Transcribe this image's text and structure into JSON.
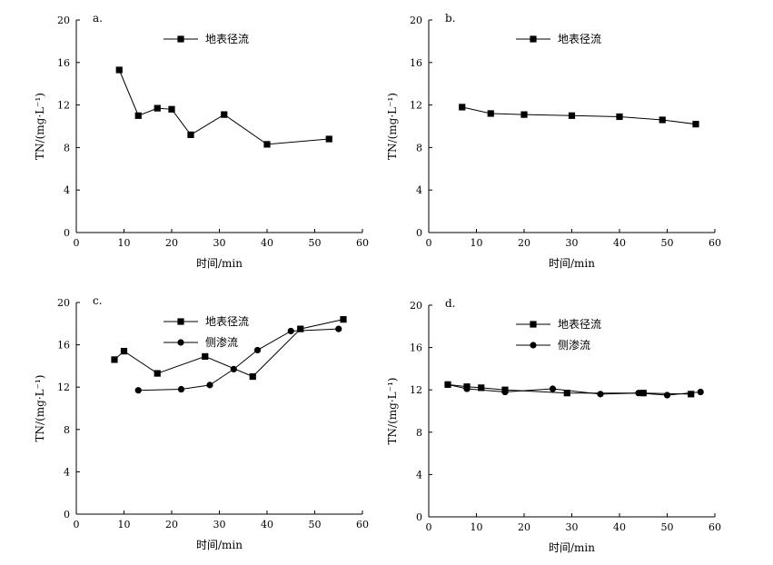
{
  "chart_data": [
    {
      "type": "line",
      "panel_label": "a.",
      "xlabel": "时间/min",
      "ylabel": "TN/(mg·L⁻¹)",
      "xlim": [
        0,
        60
      ],
      "ylim": [
        0,
        20
      ],
      "xticks": [
        "0",
        "10",
        "20",
        "30",
        "40",
        "50",
        "60"
      ],
      "yticks": [
        "0",
        "4",
        "8",
        "12",
        "16",
        "20"
      ],
      "grid": false,
      "legend_position": "top-center",
      "series": [
        {
          "name": "地表径流",
          "marker": "square",
          "x": [
            9,
            13,
            17,
            20,
            24,
            31,
            40,
            53
          ],
          "y": [
            15.3,
            11.0,
            11.7,
            11.6,
            9.2,
            11.1,
            8.3,
            8.8
          ]
        }
      ]
    },
    {
      "type": "line",
      "panel_label": "b.",
      "xlabel": "时间/min",
      "ylabel": "TN/(mg·L⁻¹)",
      "xlim": [
        0,
        60
      ],
      "ylim": [
        0,
        20
      ],
      "xticks": [
        "0",
        "10",
        "20",
        "30",
        "40",
        "50",
        "60"
      ],
      "yticks": [
        "0",
        "4",
        "8",
        "12",
        "16",
        "20"
      ],
      "grid": false,
      "legend_position": "top-center",
      "series": [
        {
          "name": "地表径流",
          "marker": "square",
          "x": [
            7,
            13,
            20,
            30,
            40,
            49,
            56
          ],
          "y": [
            11.8,
            11.2,
            11.1,
            11.0,
            10.9,
            10.6,
            10.2
          ]
        }
      ]
    },
    {
      "type": "line",
      "panel_label": "c.",
      "xlabel": "时间/min",
      "ylabel": "TN/(mg·L⁻¹)",
      "xlim": [
        0,
        60
      ],
      "ylim": [
        0,
        20
      ],
      "xticks": [
        "0",
        "10",
        "20",
        "30",
        "40",
        "50",
        "60"
      ],
      "yticks": [
        "0",
        "4",
        "8",
        "12",
        "16",
        "20"
      ],
      "grid": false,
      "legend_position": "top-center",
      "series": [
        {
          "name": "地表径流",
          "marker": "square",
          "x": [
            8,
            10,
            17,
            27,
            37,
            47,
            56
          ],
          "y": [
            14.6,
            15.4,
            13.3,
            14.9,
            13.0,
            17.5,
            18.4
          ]
        },
        {
          "name": "侧渗流",
          "marker": "circle",
          "x": [
            13,
            22,
            28,
            33,
            38,
            45,
            55
          ],
          "y": [
            11.7,
            11.8,
            12.2,
            13.7,
            15.5,
            17.3,
            17.5
          ]
        }
      ]
    },
    {
      "type": "line",
      "panel_label": "d.",
      "xlabel": "时间/min",
      "ylabel": "TN/(mg·L⁻¹)",
      "xlim": [
        0,
        60
      ],
      "ylim": [
        0,
        20
      ],
      "xticks": [
        "0",
        "10",
        "20",
        "30",
        "40",
        "50",
        "60"
      ],
      "yticks": [
        "0",
        "4",
        "8",
        "12",
        "16",
        "20"
      ],
      "grid": false,
      "legend_position": "top-center",
      "series": [
        {
          "name": "地表径流",
          "marker": "square",
          "x": [
            4,
            8,
            11,
            16,
            29,
            45,
            55
          ],
          "y": [
            12.5,
            12.3,
            12.2,
            12.0,
            11.7,
            11.7,
            11.6
          ]
        },
        {
          "name": "侧渗流",
          "marker": "circle",
          "x": [
            4,
            8,
            16,
            26,
            36,
            44,
            50,
            57
          ],
          "y": [
            12.5,
            12.1,
            11.8,
            12.1,
            11.6,
            11.7,
            11.5,
            11.8
          ]
        }
      ]
    }
  ]
}
